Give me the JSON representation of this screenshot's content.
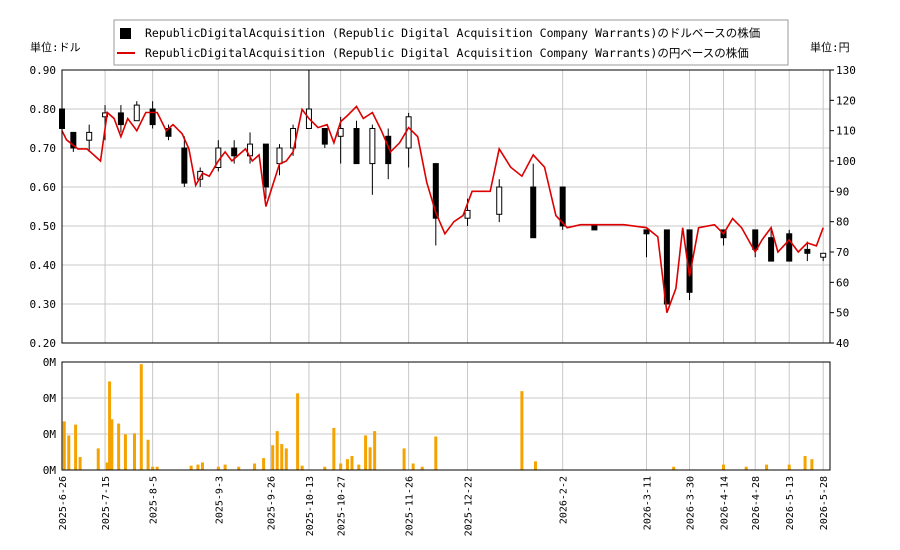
{
  "legend": {
    "item_usd": "RepublicDigitalAcquisition (Republic Digital Acquisition Company Warrants)のドルベースの株価",
    "item_jpy": "RepublicDigitalAcquisition (Republic Digital Acquisition Company Warrants)の円ベースの株価"
  },
  "colors": {
    "candle": "#000000",
    "yen_line": "#dd0000",
    "volume": "#f5a300",
    "grid": "#c8c8c8"
  },
  "chart_data": [
    {
      "type": "candlestick",
      "ylabel_left": "単位:ドル",
      "ylabel_right": "単位:円",
      "ylim_left": [
        0.2,
        0.9
      ],
      "yticks_left": [
        "0.90",
        "0.80",
        "0.70",
        "0.60",
        "0.50",
        "0.40",
        "0.30",
        "0.20"
      ],
      "ylim_right": [
        40,
        130
      ],
      "yticks_right": [
        "130",
        "120",
        "110",
        "100",
        "90",
        "80",
        "70",
        "60",
        "50",
        "40"
      ],
      "xlim": [
        "2025-06-26",
        "2026-05-31"
      ],
      "x_ticks": [
        "2025-6-26",
        "2025-7-15",
        "2025-8-5",
        "2025-9-3",
        "2025-9-26",
        "2025-10-13",
        "2025-10-27",
        "2025-11-26",
        "2025-12-22",
        "2026-2-2",
        "2026-3-11",
        "2026-3-30",
        "2026-4-14",
        "2026-4-28",
        "2026-5-13",
        "2026-5-28"
      ],
      "grid": true,
      "price_usd": [
        {
          "x": "2025-06-26",
          "o": 0.8,
          "h": 0.85,
          "l": 0.68,
          "c": 0.75
        },
        {
          "x": "2025-07-01",
          "o": 0.74,
          "h": 0.74,
          "l": 0.69,
          "c": 0.7
        },
        {
          "x": "2025-07-08",
          "o": 0.72,
          "h": 0.76,
          "l": 0.69,
          "c": 0.74
        },
        {
          "x": "2025-07-15",
          "o": 0.78,
          "h": 0.81,
          "l": 0.72,
          "c": 0.79
        },
        {
          "x": "2025-07-22",
          "o": 0.79,
          "h": 0.81,
          "l": 0.74,
          "c": 0.76
        },
        {
          "x": "2025-07-29",
          "o": 0.77,
          "h": 0.82,
          "l": 0.77,
          "c": 0.81
        },
        {
          "x": "2025-08-05",
          "o": 0.8,
          "h": 0.82,
          "l": 0.75,
          "c": 0.76
        },
        {
          "x": "2025-08-12",
          "o": 0.75,
          "h": 0.76,
          "l": 0.72,
          "c": 0.73
        },
        {
          "x": "2025-08-19",
          "o": 0.7,
          "h": 0.73,
          "l": 0.6,
          "c": 0.61
        },
        {
          "x": "2025-08-26",
          "o": 0.62,
          "h": 0.65,
          "l": 0.6,
          "c": 0.64
        },
        {
          "x": "2025-09-03",
          "o": 0.65,
          "h": 0.72,
          "l": 0.64,
          "c": 0.7
        },
        {
          "x": "2025-09-10",
          "o": 0.7,
          "h": 0.72,
          "l": 0.66,
          "c": 0.68
        },
        {
          "x": "2025-09-17",
          "o": 0.68,
          "h": 0.74,
          "l": 0.66,
          "c": 0.71
        },
        {
          "x": "2025-09-24",
          "o": 0.71,
          "h": 0.71,
          "l": 0.57,
          "c": 0.6
        },
        {
          "x": "2025-09-30",
          "o": 0.66,
          "h": 0.71,
          "l": 0.63,
          "c": 0.7
        },
        {
          "x": "2025-10-06",
          "o": 0.7,
          "h": 0.76,
          "l": 0.68,
          "c": 0.75
        },
        {
          "x": "2025-10-13",
          "o": 0.75,
          "h": 0.9,
          "l": 0.75,
          "c": 0.8
        },
        {
          "x": "2025-10-20",
          "o": 0.75,
          "h": 0.75,
          "l": 0.7,
          "c": 0.71
        },
        {
          "x": "2025-10-27",
          "o": 0.73,
          "h": 0.78,
          "l": 0.66,
          "c": 0.75
        },
        {
          "x": "2025-11-03",
          "o": 0.75,
          "h": 0.77,
          "l": 0.66,
          "c": 0.66
        },
        {
          "x": "2025-11-10",
          "o": 0.66,
          "h": 0.76,
          "l": 0.58,
          "c": 0.75
        },
        {
          "x": "2025-11-17",
          "o": 0.73,
          "h": 0.75,
          "l": 0.62,
          "c": 0.66
        },
        {
          "x": "2025-11-26",
          "o": 0.7,
          "h": 0.79,
          "l": 0.65,
          "c": 0.78
        },
        {
          "x": "2025-12-08",
          "o": 0.66,
          "h": 0.66,
          "l": 0.45,
          "c": 0.52
        },
        {
          "x": "2025-12-22",
          "o": 0.52,
          "h": 0.57,
          "l": 0.5,
          "c": 0.54
        },
        {
          "x": "2026-01-05",
          "o": 0.53,
          "h": 0.62,
          "l": 0.51,
          "c": 0.6
        },
        {
          "x": "2026-01-20",
          "o": 0.6,
          "h": 0.66,
          "l": 0.47,
          "c": 0.47
        },
        {
          "x": "2026-02-02",
          "o": 0.6,
          "h": 0.6,
          "l": 0.49,
          "c": 0.5
        },
        {
          "x": "2026-02-16",
          "o": 0.5,
          "h": 0.5,
          "l": 0.49,
          "c": 0.49
        },
        {
          "x": "2026-03-11",
          "o": 0.49,
          "h": 0.49,
          "l": 0.42,
          "c": 0.48
        },
        {
          "x": "2026-03-20",
          "o": 0.49,
          "h": 0.49,
          "l": 0.3,
          "c": 0.3
        },
        {
          "x": "2026-03-30",
          "o": 0.49,
          "h": 0.49,
          "l": 0.31,
          "c": 0.33
        },
        {
          "x": "2026-04-14",
          "o": 0.49,
          "h": 0.49,
          "l": 0.45,
          "c": 0.47
        },
        {
          "x": "2026-04-28",
          "o": 0.49,
          "h": 0.49,
          "l": 0.42,
          "c": 0.44
        },
        {
          "x": "2026-05-05",
          "o": 0.47,
          "h": 0.49,
          "l": 0.41,
          "c": 0.41
        },
        {
          "x": "2026-05-13",
          "o": 0.48,
          "h": 0.49,
          "l": 0.41,
          "c": 0.41
        },
        {
          "x": "2026-05-21",
          "o": 0.44,
          "h": 0.46,
          "l": 0.41,
          "c": 0.43
        },
        {
          "x": "2026-05-28",
          "o": 0.42,
          "h": 0.43,
          "l": 0.41,
          "c": 0.43
        }
      ],
      "price_jpy": [
        {
          "x": "2025-06-26",
          "y": 110
        },
        {
          "x": "2025-06-28",
          "y": 107
        },
        {
          "x": "2025-07-03",
          "y": 104
        },
        {
          "x": "2025-07-07",
          "y": 104
        },
        {
          "x": "2025-07-10",
          "y": 102
        },
        {
          "x": "2025-07-13",
          "y": 100
        },
        {
          "x": "2025-07-16",
          "y": 116
        },
        {
          "x": "2025-07-19",
          "y": 114
        },
        {
          "x": "2025-07-22",
          "y": 108
        },
        {
          "x": "2025-07-25",
          "y": 114
        },
        {
          "x": "2025-07-29",
          "y": 110
        },
        {
          "x": "2025-08-02",
          "y": 116
        },
        {
          "x": "2025-08-07",
          "y": 116
        },
        {
          "x": "2025-08-11",
          "y": 110
        },
        {
          "x": "2025-08-14",
          "y": 112
        },
        {
          "x": "2025-08-18",
          "y": 109
        },
        {
          "x": "2025-08-21",
          "y": 104
        },
        {
          "x": "2025-08-24",
          "y": 92
        },
        {
          "x": "2025-08-27",
          "y": 96
        },
        {
          "x": "2025-08-30",
          "y": 95
        },
        {
          "x": "2025-09-03",
          "y": 100
        },
        {
          "x": "2025-09-06",
          "y": 103
        },
        {
          "x": "2025-09-09",
          "y": 100
        },
        {
          "x": "2025-09-12",
          "y": 102
        },
        {
          "x": "2025-09-15",
          "y": 104
        },
        {
          "x": "2025-09-18",
          "y": 100
        },
        {
          "x": "2025-09-21",
          "y": 102
        },
        {
          "x": "2025-09-24",
          "y": 85
        },
        {
          "x": "2025-09-27",
          "y": 92
        },
        {
          "x": "2025-09-30",
          "y": 99
        },
        {
          "x": "2025-10-03",
          "y": 100
        },
        {
          "x": "2025-10-06",
          "y": 103
        },
        {
          "x": "2025-10-10",
          "y": 117
        },
        {
          "x": "2025-10-13",
          "y": 114
        },
        {
          "x": "2025-10-17",
          "y": 111
        },
        {
          "x": "2025-10-21",
          "y": 112
        },
        {
          "x": "2025-10-24",
          "y": 106
        },
        {
          "x": "2025-10-27",
          "y": 113
        },
        {
          "x": "2025-10-30",
          "y": 115
        },
        {
          "x": "2025-11-03",
          "y": 118
        },
        {
          "x": "2025-11-06",
          "y": 114
        },
        {
          "x": "2025-11-10",
          "y": 116
        },
        {
          "x": "2025-11-14",
          "y": 110
        },
        {
          "x": "2025-11-18",
          "y": 103
        },
        {
          "x": "2025-11-22",
          "y": 106
        },
        {
          "x": "2025-11-26",
          "y": 111
        },
        {
          "x": "2025-11-30",
          "y": 108
        },
        {
          "x": "2025-12-04",
          "y": 93
        },
        {
          "x": "2025-12-08",
          "y": 83
        },
        {
          "x": "2025-12-12",
          "y": 76
        },
        {
          "x": "2025-12-16",
          "y": 80
        },
        {
          "x": "2025-12-20",
          "y": 82
        },
        {
          "x": "2025-12-24",
          "y": 90
        },
        {
          "x": "2026-01-01",
          "y": 90
        },
        {
          "x": "2026-01-05",
          "y": 104
        },
        {
          "x": "2026-01-10",
          "y": 98
        },
        {
          "x": "2026-01-15",
          "y": 95
        },
        {
          "x": "2026-01-20",
          "y": 102
        },
        {
          "x": "2026-01-25",
          "y": 98
        },
        {
          "x": "2026-01-30",
          "y": 82
        },
        {
          "x": "2026-02-04",
          "y": 78
        },
        {
          "x": "2026-02-10",
          "y": 79
        },
        {
          "x": "2026-02-20",
          "y": 79
        },
        {
          "x": "2026-03-01",
          "y": 79
        },
        {
          "x": "2026-03-11",
          "y": 78
        },
        {
          "x": "2026-03-16",
          "y": 75
        },
        {
          "x": "2026-03-20",
          "y": 50
        },
        {
          "x": "2026-03-24",
          "y": 58
        },
        {
          "x": "2026-03-27",
          "y": 78
        },
        {
          "x": "2026-03-30",
          "y": 62
        },
        {
          "x": "2026-04-03",
          "y": 78
        },
        {
          "x": "2026-04-10",
          "y": 79
        },
        {
          "x": "2026-04-14",
          "y": 76
        },
        {
          "x": "2026-04-18",
          "y": 81
        },
        {
          "x": "2026-04-22",
          "y": 78
        },
        {
          "x": "2026-04-28",
          "y": 70
        },
        {
          "x": "2026-05-01",
          "y": 74
        },
        {
          "x": "2026-05-05",
          "y": 78
        },
        {
          "x": "2026-05-08",
          "y": 70
        },
        {
          "x": "2026-05-13",
          "y": 74
        },
        {
          "x": "2026-05-17",
          "y": 70
        },
        {
          "x": "2026-05-21",
          "y": 73
        },
        {
          "x": "2026-05-25",
          "y": 72
        },
        {
          "x": "2026-05-28",
          "y": 78
        }
      ]
    },
    {
      "type": "bar",
      "name": "volume",
      "yticks": [
        "0M",
        "0M",
        "0M",
        "0M"
      ],
      "ylim": [
        0,
        1
      ],
      "values": [
        {
          "x": "2025-06-27",
          "v": 0.45
        },
        {
          "x": "2025-06-29",
          "v": 0.32
        },
        {
          "x": "2025-07-02",
          "v": 0.42
        },
        {
          "x": "2025-07-04",
          "v": 0.12
        },
        {
          "x": "2025-07-12",
          "v": 0.2
        },
        {
          "x": "2025-07-16",
          "v": 0.07
        },
        {
          "x": "2025-07-17",
          "v": 0.82
        },
        {
          "x": "2025-07-18",
          "v": 0.47
        },
        {
          "x": "2025-07-21",
          "v": 0.43
        },
        {
          "x": "2025-07-24",
          "v": 0.33
        },
        {
          "x": "2025-07-28",
          "v": 0.34
        },
        {
          "x": "2025-07-31",
          "v": 0.98
        },
        {
          "x": "2025-08-03",
          "v": 0.28
        },
        {
          "x": "2025-08-05",
          "v": 0.03
        },
        {
          "x": "2025-08-07",
          "v": 0.03
        },
        {
          "x": "2025-08-22",
          "v": 0.04
        },
        {
          "x": "2025-08-25",
          "v": 0.05
        },
        {
          "x": "2025-08-27",
          "v": 0.07
        },
        {
          "x": "2025-09-03",
          "v": 0.03
        },
        {
          "x": "2025-09-06",
          "v": 0.05
        },
        {
          "x": "2025-09-12",
          "v": 0.03
        },
        {
          "x": "2025-09-19",
          "v": 0.06
        },
        {
          "x": "2025-09-23",
          "v": 0.11
        },
        {
          "x": "2025-09-27",
          "v": 0.23
        },
        {
          "x": "2025-09-29",
          "v": 0.36
        },
        {
          "x": "2025-10-01",
          "v": 0.24
        },
        {
          "x": "2025-10-03",
          "v": 0.2
        },
        {
          "x": "2025-10-08",
          "v": 0.71
        },
        {
          "x": "2025-10-10",
          "v": 0.04
        },
        {
          "x": "2025-10-20",
          "v": 0.03
        },
        {
          "x": "2025-10-24",
          "v": 0.39
        },
        {
          "x": "2025-10-27",
          "v": 0.06
        },
        {
          "x": "2025-10-30",
          "v": 0.1
        },
        {
          "x": "2025-11-01",
          "v": 0.13
        },
        {
          "x": "2025-11-04",
          "v": 0.05
        },
        {
          "x": "2025-11-07",
          "v": 0.32
        },
        {
          "x": "2025-11-09",
          "v": 0.21
        },
        {
          "x": "2025-11-11",
          "v": 0.36
        },
        {
          "x": "2025-11-24",
          "v": 0.2
        },
        {
          "x": "2025-11-28",
          "v": 0.06
        },
        {
          "x": "2025-12-02",
          "v": 0.03
        },
        {
          "x": "2025-12-08",
          "v": 0.31
        },
        {
          "x": "2026-01-15",
          "v": 0.73
        },
        {
          "x": "2026-01-21",
          "v": 0.08
        },
        {
          "x": "2026-03-23",
          "v": 0.03
        },
        {
          "x": "2026-04-14",
          "v": 0.05
        },
        {
          "x": "2026-04-24",
          "v": 0.03
        },
        {
          "x": "2026-05-03",
          "v": 0.05
        },
        {
          "x": "2026-05-13",
          "v": 0.05
        },
        {
          "x": "2026-05-20",
          "v": 0.13
        },
        {
          "x": "2026-05-23",
          "v": 0.1
        }
      ]
    }
  ]
}
